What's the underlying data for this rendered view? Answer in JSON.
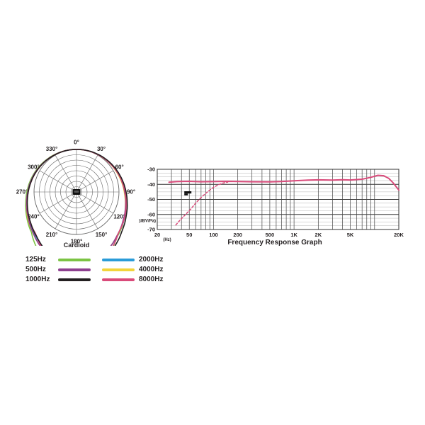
{
  "legend": {
    "items": [
      {
        "label": "125Hz",
        "color": "#7cc344"
      },
      {
        "label": "500Hz",
        "color": "#8e4090"
      },
      {
        "label": "1000Hz",
        "color": "#231f20"
      },
      {
        "label": "2000Hz",
        "color": "#2b9cd8"
      },
      {
        "label": "4000Hz",
        "color": "#f2d43b"
      },
      {
        "label": "8000Hz",
        "color": "#d94a7a"
      }
    ]
  },
  "chart_data": [
    {
      "type": "polar",
      "title": "Cardioid",
      "angle_labels": [
        "0°",
        "30°",
        "60°",
        "90°",
        "120°",
        "150°",
        "180°",
        "210°",
        "240°",
        "270°",
        "300°",
        "330°"
      ],
      "rings": 8,
      "ring_step_db": 5,
      "db_floor": -40,
      "sample_angles": [
        0,
        15,
        30,
        45,
        60,
        75,
        90,
        105,
        120,
        135,
        150,
        165,
        180
      ],
      "series": [
        {
          "name": "2000Hz",
          "color": "#2b9cd8",
          "rotation_deg": 0,
          "db": [
            0,
            -0.2,
            -0.6,
            -1.3,
            -2.4,
            -3.9,
            -5.8,
            -8.4,
            -11.8,
            -16,
            -21,
            -28,
            -33
          ]
        },
        {
          "name": "125Hz",
          "color": "#7cc344",
          "rotation_deg": 3,
          "db": [
            0,
            -0.2,
            -0.6,
            -1.4,
            -2.6,
            -4.2,
            -6.2,
            -8.8,
            -12.5,
            -17,
            -26,
            -22,
            -30
          ]
        },
        {
          "name": "4000Hz",
          "color": "#f2d43b",
          "rotation_deg": 2,
          "db": [
            0,
            -0.2,
            -0.5,
            -1.1,
            -2.0,
            -3.4,
            -5.2,
            -8.0,
            -12,
            -16,
            -22,
            -28,
            -23
          ]
        },
        {
          "name": "500Hz",
          "color": "#8e4090",
          "rotation_deg": 2,
          "db": [
            0,
            -0.2,
            -0.5,
            -1.2,
            -2.3,
            -3.8,
            -5.6,
            -8.2,
            -11.5,
            -16,
            -22,
            -30,
            -36
          ]
        },
        {
          "name": "8000Hz",
          "color": "#d94a7a",
          "rotation_deg": -1,
          "db": [
            0,
            -0.2,
            -0.5,
            -1.2,
            -2.2,
            -3.6,
            -5.6,
            -8.2,
            -11.5,
            -15,
            -23,
            -27,
            -24
          ]
        },
        {
          "name": "1000Hz",
          "color": "#231f20",
          "rotation_deg": -4,
          "db": [
            0,
            -0.2,
            -0.6,
            -1.4,
            -2.5,
            -4.0,
            -6.0,
            -8.6,
            -12,
            -16.5,
            -23,
            -33,
            -40
          ]
        }
      ]
    },
    {
      "type": "line",
      "title": "Frequency Response Graph",
      "x_unit": "(Hz)",
      "y_unit": "(dBV/Pa)",
      "xlim": [
        20,
        20000
      ],
      "ylim": [
        -70,
        -30
      ],
      "x_ticks": [
        "20",
        "50",
        "100",
        "200",
        "500",
        "1K",
        "2K",
        "5K",
        "20K"
      ],
      "x_tick_values": [
        20,
        50,
        100,
        200,
        500,
        1000,
        2000,
        5000,
        20000
      ],
      "y_ticks": [
        "-30",
        "-40",
        "-50",
        "-60",
        "-70"
      ],
      "y_tick_values": [
        -30,
        -40,
        -50,
        -60,
        -70
      ],
      "series": [
        {
          "name": "response",
          "style": "solid",
          "color": "#d94a7a",
          "points": [
            [
              28,
              -38.6
            ],
            [
              35,
              -38.2
            ],
            [
              50,
              -38.0
            ],
            [
              70,
              -38.3
            ],
            [
              100,
              -38.2
            ],
            [
              150,
              -38.0
            ],
            [
              200,
              -38.1
            ],
            [
              300,
              -38.3
            ],
            [
              500,
              -38.4
            ],
            [
              700,
              -38.1
            ],
            [
              1000,
              -37.6
            ],
            [
              1500,
              -37.2
            ],
            [
              2000,
              -37.0
            ],
            [
              3000,
              -37.2
            ],
            [
              4000,
              -36.9
            ],
            [
              5000,
              -37.1
            ],
            [
              7000,
              -36.6
            ],
            [
              9000,
              -35.3
            ],
            [
              11000,
              -34.0
            ],
            [
              13000,
              -34.3
            ],
            [
              15000,
              -36.0
            ],
            [
              17000,
              -39.0
            ],
            [
              20000,
              -43.8
            ]
          ]
        },
        {
          "name": "low-cut-response",
          "style": "dashed",
          "color": "#d94a7a",
          "points": [
            [
              34,
              -67
            ],
            [
              38,
              -64
            ],
            [
              45,
              -60
            ],
            [
              52,
              -56.5
            ],
            [
              60,
              -52.5
            ],
            [
              70,
              -48.8
            ],
            [
              80,
              -46
            ],
            [
              90,
              -43.8
            ],
            [
              100,
              -42
            ],
            [
              115,
              -40.3
            ],
            [
              130,
              -39.2
            ],
            [
              150,
              -38.5
            ]
          ]
        }
      ],
      "marker": {
        "x": 48,
        "y": -46
      }
    }
  ]
}
